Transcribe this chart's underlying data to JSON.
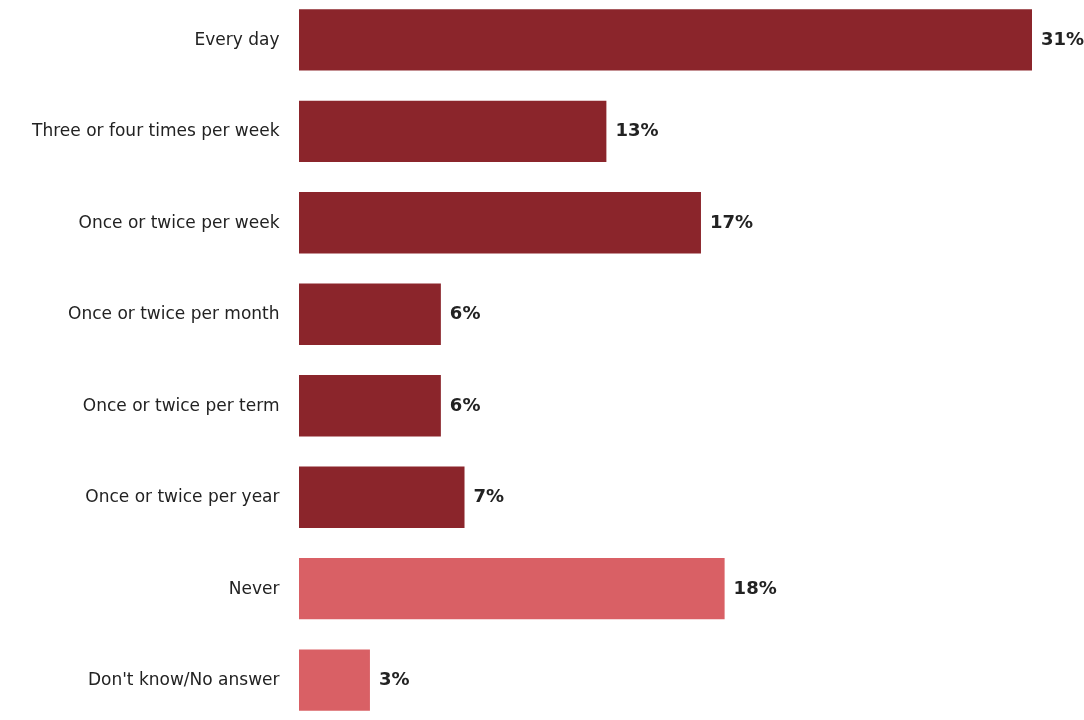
{
  "chart_data": {
    "type": "bar",
    "orientation": "horizontal",
    "categories": [
      "Every day",
      "Three or four times per week",
      "Once or twice per week",
      "Once or twice per month",
      "Once or twice per term",
      "Once or twice per year",
      "Never",
      "Don't know/No answer"
    ],
    "values": [
      31,
      13,
      17,
      6,
      6,
      7,
      18,
      3
    ],
    "value_labels": [
      "31%",
      "13%",
      "17%",
      "6%",
      "6%",
      "7%",
      "18%",
      "3%"
    ],
    "colors": [
      "#8b252b",
      "#8b252b",
      "#8b252b",
      "#8b252b",
      "#8b252b",
      "#8b252b",
      "#d96065",
      "#d96065"
    ]
  }
}
